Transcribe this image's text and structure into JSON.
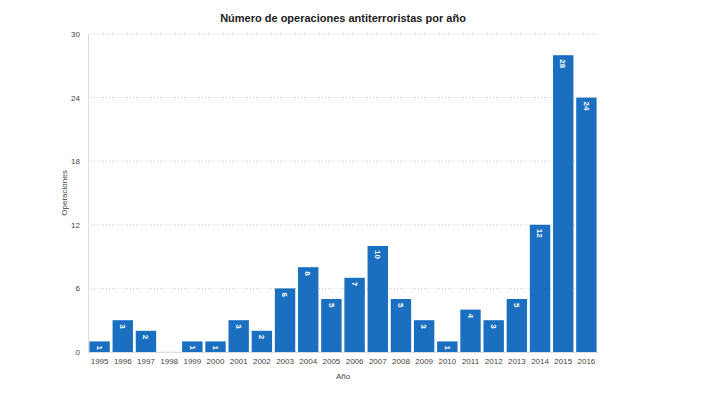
{
  "chart_data": {
    "type": "bar",
    "title": "Número de operaciones antiterroristas por año",
    "x_label": "Año",
    "y_label": "Operaciones",
    "categories": [
      "1995",
      "1996",
      "1997",
      "1998",
      "1999",
      "2000",
      "2001",
      "2002",
      "2003",
      "2004",
      "2005",
      "2006",
      "2007",
      "2008",
      "2009",
      "2010",
      "2011",
      "2012",
      "2013",
      "2014",
      "2015",
      "2016"
    ],
    "values": [
      1,
      3,
      2,
      0,
      1,
      1,
      3,
      2,
      6,
      8,
      5,
      7,
      10,
      5,
      3,
      1,
      4,
      3,
      5,
      12,
      28,
      24
    ],
    "color": "#1a6fc0",
    "ylim": [
      0,
      30
    ],
    "yticks": [
      0,
      6,
      12,
      18,
      24,
      30
    ],
    "grid": true,
    "data_labels": true
  }
}
